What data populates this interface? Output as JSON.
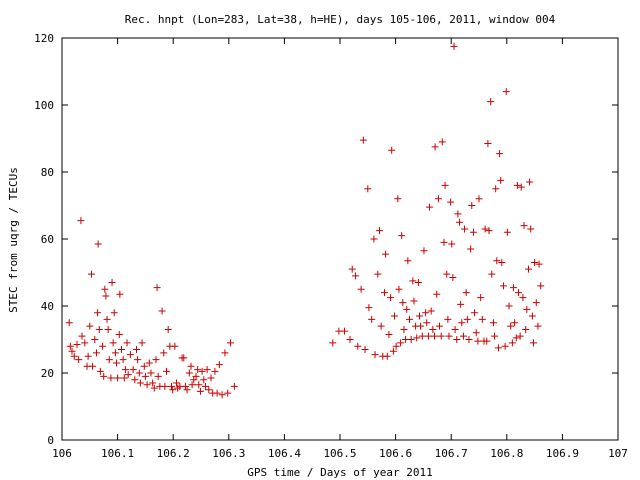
{
  "chart_data": {
    "type": "scatter",
    "title": "Rec. hnpt (Lon=283, Lat=38, h=HE), days 105-106, 2011, window 004",
    "xlabel": "GPS time / Days of year 2011",
    "ylabel": "STEC from uqrg / TECUs",
    "xlim": [
      106,
      107
    ],
    "ylim": [
      0,
      120
    ],
    "x_ticks": [
      106,
      106.1,
      106.2,
      106.3,
      106.4,
      106.5,
      106.6,
      106.7,
      106.8,
      106.9,
      107
    ],
    "x_tick_labels": [
      "106",
      "106.1",
      "106.2",
      "106.3",
      "106.4",
      "106.5",
      "106.6",
      "106.7",
      "106.8",
      "106.9",
      "107"
    ],
    "y_ticks": [
      0,
      20,
      40,
      60,
      80,
      100,
      120
    ],
    "y_tick_labels": [
      "0",
      "20",
      "40",
      "60",
      "80",
      "100",
      "120"
    ],
    "marker": "+",
    "marker_color": "#cc0000",
    "grid": false,
    "legend": "none",
    "points": [
      [
        106.013,
        35
      ],
      [
        106.015,
        28
      ],
      [
        106.018,
        26.5
      ],
      [
        106.022,
        25
      ],
      [
        106.027,
        28.5
      ],
      [
        106.03,
        24
      ],
      [
        106.034,
        65.5
      ],
      [
        106.036,
        31
      ],
      [
        106.041,
        29
      ],
      [
        106.045,
        22
      ],
      [
        106.047,
        25
      ],
      [
        106.05,
        34
      ],
      [
        106.053,
        49.5
      ],
      [
        106.055,
        22
      ],
      [
        106.059,
        30
      ],
      [
        106.062,
        26
      ],
      [
        106.064,
        38
      ],
      [
        106.065,
        58.5
      ],
      [
        106.067,
        33
      ],
      [
        106.069,
        20.5
      ],
      [
        106.073,
        28
      ],
      [
        106.075,
        19
      ],
      [
        106.077,
        45
      ],
      [
        106.079,
        43
      ],
      [
        106.081,
        36
      ],
      [
        106.083,
        33
      ],
      [
        106.085,
        24
      ],
      [
        106.088,
        18.5
      ],
      [
        106.09,
        47
      ],
      [
        106.092,
        29
      ],
      [
        106.094,
        38
      ],
      [
        106.096,
        26
      ],
      [
        106.098,
        23
      ],
      [
        106.1,
        18.5
      ],
      [
        106.103,
        31.5
      ],
      [
        106.104,
        43.5
      ],
      [
        106.107,
        27
      ],
      [
        106.11,
        24
      ],
      [
        106.112,
        18.5
      ],
      [
        106.114,
        21
      ],
      [
        106.117,
        29
      ],
      [
        106.119,
        19.5
      ],
      [
        106.123,
        25.5
      ],
      [
        106.128,
        21
      ],
      [
        106.131,
        18
      ],
      [
        106.134,
        27
      ],
      [
        106.136,
        24
      ],
      [
        106.139,
        20
      ],
      [
        106.141,
        17
      ],
      [
        106.144,
        29
      ],
      [
        106.148,
        22
      ],
      [
        106.15,
        19
      ],
      [
        106.153,
        16.5
      ],
      [
        106.157,
        23
      ],
      [
        106.16,
        20
      ],
      [
        106.163,
        17
      ],
      [
        106.166,
        15.5
      ],
      [
        106.169,
        24
      ],
      [
        106.171,
        45.5
      ],
      [
        106.173,
        19
      ],
      [
        106.176,
        16
      ],
      [
        106.18,
        38.5
      ],
      [
        106.183,
        26
      ],
      [
        106.185,
        16
      ],
      [
        106.188,
        20.5
      ],
      [
        106.191,
        33
      ],
      [
        106.194,
        28
      ],
      [
        106.197,
        16
      ],
      [
        106.199,
        15
      ],
      [
        106.203,
        28
      ],
      [
        106.206,
        17
      ],
      [
        106.208,
        15.5
      ],
      [
        106.212,
        16
      ],
      [
        106.216,
        24.5
      ],
      [
        106.219,
        24.5
      ],
      [
        106.222,
        16
      ],
      [
        106.225,
        15
      ],
      [
        106.229,
        20
      ],
      [
        106.232,
        22
      ],
      [
        106.234,
        16.5
      ],
      [
        106.237,
        18
      ],
      [
        106.241,
        19
      ],
      [
        106.244,
        21
      ],
      [
        106.246,
        16.5
      ],
      [
        106.249,
        14.5
      ],
      [
        106.252,
        20.5
      ],
      [
        106.255,
        18
      ],
      [
        106.258,
        16
      ],
      [
        106.261,
        21
      ],
      [
        106.264,
        15
      ],
      [
        106.268,
        18.5
      ],
      [
        106.271,
        14
      ],
      [
        106.275,
        20.5
      ],
      [
        106.279,
        14
      ],
      [
        106.283,
        22.5
      ],
      [
        106.288,
        13.5
      ],
      [
        106.293,
        26
      ],
      [
        106.298,
        14
      ],
      [
        106.303,
        29
      ],
      [
        106.31,
        16
      ],
      [
        106.487,
        29
      ],
      [
        106.498,
        32.5
      ],
      [
        106.508,
        32.5
      ],
      [
        106.518,
        30
      ],
      [
        106.522,
        51
      ],
      [
        106.528,
        49
      ],
      [
        106.532,
        28
      ],
      [
        106.538,
        45
      ],
      [
        106.542,
        89.5
      ],
      [
        106.545,
        27
      ],
      [
        106.55,
        75
      ],
      [
        106.552,
        39.5
      ],
      [
        106.557,
        36
      ],
      [
        106.561,
        60
      ],
      [
        106.563,
        25.5
      ],
      [
        106.568,
        49.5
      ],
      [
        106.571,
        62.5
      ],
      [
        106.574,
        34
      ],
      [
        106.577,
        25
      ],
      [
        106.58,
        44
      ],
      [
        106.582,
        55.5
      ],
      [
        106.585,
        25
      ],
      [
        106.588,
        31.5
      ],
      [
        106.591,
        42.5
      ],
      [
        106.593,
        86.5
      ],
      [
        106.596,
        26.5
      ],
      [
        106.598,
        37
      ],
      [
        106.601,
        28
      ],
      [
        106.604,
        72
      ],
      [
        106.606,
        45
      ],
      [
        106.609,
        29
      ],
      [
        106.611,
        61
      ],
      [
        106.613,
        41
      ],
      [
        106.615,
        33
      ],
      [
        106.618,
        30
      ],
      [
        106.62,
        39
      ],
      [
        106.622,
        53.5
      ],
      [
        106.625,
        36
      ],
      [
        106.628,
        30
      ],
      [
        106.631,
        47.5
      ],
      [
        106.633,
        41.5
      ],
      [
        106.636,
        34
      ],
      [
        106.638,
        30.5
      ],
      [
        106.641,
        47
      ],
      [
        106.643,
        37
      ],
      [
        106.645,
        34
      ],
      [
        106.648,
        31
      ],
      [
        106.651,
        56.5
      ],
      [
        106.654,
        38
      ],
      [
        106.656,
        35
      ],
      [
        106.659,
        31
      ],
      [
        106.661,
        69.5
      ],
      [
        106.664,
        38.5
      ],
      [
        106.667,
        33
      ],
      [
        106.67,
        31
      ],
      [
        106.671,
        87.5
      ],
      [
        106.674,
        43.5
      ],
      [
        106.677,
        72
      ],
      [
        106.679,
        34
      ],
      [
        106.682,
        31
      ],
      [
        106.684,
        89
      ],
      [
        106.687,
        59
      ],
      [
        106.689,
        76
      ],
      [
        106.692,
        49.5
      ],
      [
        106.694,
        36
      ],
      [
        106.696,
        31
      ],
      [
        106.699,
        71
      ],
      [
        106.701,
        58.5
      ],
      [
        106.703,
        48.5
      ],
      [
        106.705,
        117.5
      ],
      [
        106.707,
        33
      ],
      [
        106.71,
        30
      ],
      [
        106.712,
        67.5
      ],
      [
        106.715,
        65
      ],
      [
        106.717,
        40.5
      ],
      [
        106.719,
        35
      ],
      [
        106.722,
        31
      ],
      [
        106.724,
        63
      ],
      [
        106.727,
        44
      ],
      [
        106.729,
        36
      ],
      [
        106.732,
        30
      ],
      [
        106.735,
        57
      ],
      [
        106.737,
        70
      ],
      [
        106.74,
        62
      ],
      [
        106.742,
        38
      ],
      [
        106.745,
        32
      ],
      [
        106.748,
        29.5
      ],
      [
        106.75,
        72
      ],
      [
        106.753,
        42.5
      ],
      [
        106.756,
        36
      ],
      [
        106.759,
        29.5
      ],
      [
        106.761,
        63
      ],
      [
        106.764,
        29.5
      ],
      [
        106.766,
        88.5
      ],
      [
        106.768,
        62.5
      ],
      [
        106.771,
        101
      ],
      [
        106.773,
        49.5
      ],
      [
        106.776,
        35
      ],
      [
        106.778,
        31
      ],
      [
        106.78,
        75
      ],
      [
        106.782,
        53.5
      ],
      [
        106.785,
        27.5
      ],
      [
        106.787,
        85.5
      ],
      [
        106.789,
        77.5
      ],
      [
        106.791,
        53
      ],
      [
        106.794,
        46
      ],
      [
        106.797,
        28
      ],
      [
        106.799,
        104
      ],
      [
        106.801,
        62
      ],
      [
        106.804,
        40
      ],
      [
        106.807,
        34
      ],
      [
        106.81,
        29
      ],
      [
        106.812,
        45.5
      ],
      [
        106.814,
        35
      ],
      [
        106.817,
        30.5
      ],
      [
        106.819,
        76
      ],
      [
        106.821,
        44
      ],
      [
        106.824,
        31
      ],
      [
        106.826,
        75.5
      ],
      [
        106.829,
        42.5
      ],
      [
        106.831,
        64
      ],
      [
        106.834,
        33
      ],
      [
        106.836,
        39
      ],
      [
        106.839,
        51
      ],
      [
        106.841,
        77
      ],
      [
        106.843,
        63
      ],
      [
        106.846,
        37
      ],
      [
        106.848,
        29
      ],
      [
        106.85,
        53
      ],
      [
        106.853,
        41
      ],
      [
        106.856,
        34
      ],
      [
        106.858,
        52.5
      ],
      [
        106.861,
        46
      ]
    ]
  }
}
